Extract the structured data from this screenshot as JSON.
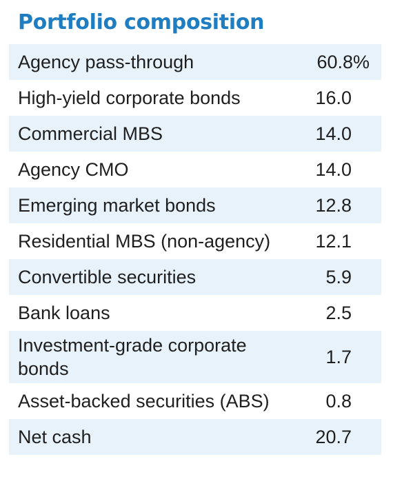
{
  "title": "Portfolio composition",
  "rows": [
    {
      "label": "Agency pass-through",
      "value": "60.8%"
    },
    {
      "label": "High-yield corporate bonds",
      "value": "16.0"
    },
    {
      "label": "Commercial MBS",
      "value": "14.0"
    },
    {
      "label": "Agency CMO",
      "value": "14.0"
    },
    {
      "label": "Emerging market bonds",
      "value": "12.8"
    },
    {
      "label": "Residential MBS (non-agency)",
      "value": "12.1"
    },
    {
      "label": "Convertible securities",
      "value": "5.9"
    },
    {
      "label": "Bank loans",
      "value": "2.5"
    },
    {
      "label": "Investment-grade corporate bonds",
      "value": "1.7"
    },
    {
      "label": "Asset-backed securities (ABS)",
      "value": "0.8"
    },
    {
      "label": "Net cash",
      "value": "20.7"
    }
  ],
  "colors": {
    "title": "#1f7ec2",
    "stripe": "#e7f2fb",
    "text": "#1f1f1f"
  }
}
